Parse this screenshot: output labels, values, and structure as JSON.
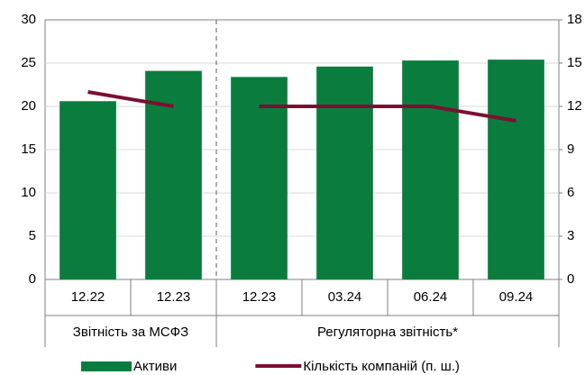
{
  "chart_data": {
    "type": "bar_line",
    "categories": [
      "12.22",
      "12.23",
      "12.23",
      "03.24",
      "06.24",
      "09.24"
    ],
    "groups": [
      {
        "label": "Звітність за МСФЗ",
        "span": 2
      },
      {
        "label": "Регуляторна звітність*",
        "span": 4
      }
    ],
    "series": [
      {
        "name": "Активи",
        "type": "bar",
        "color": "#0a7d3e",
        "values": [
          20.6,
          24.1,
          23.4,
          24.6,
          25.3,
          25.4
        ]
      },
      {
        "name": "Кількість компаній (п. ш.)",
        "type": "line",
        "axis": "y2",
        "color": "#7b1030",
        "values": [
          13,
          12,
          12,
          12,
          12,
          11
        ]
      }
    ],
    "ylim": [
      0,
      30
    ],
    "yticks": [
      0,
      5,
      10,
      15,
      20,
      25,
      30
    ],
    "y2lim": [
      0,
      18
    ],
    "y2ticks": [
      0,
      3,
      6,
      9,
      12,
      15,
      18
    ],
    "grid": true,
    "legend": "bottom"
  }
}
